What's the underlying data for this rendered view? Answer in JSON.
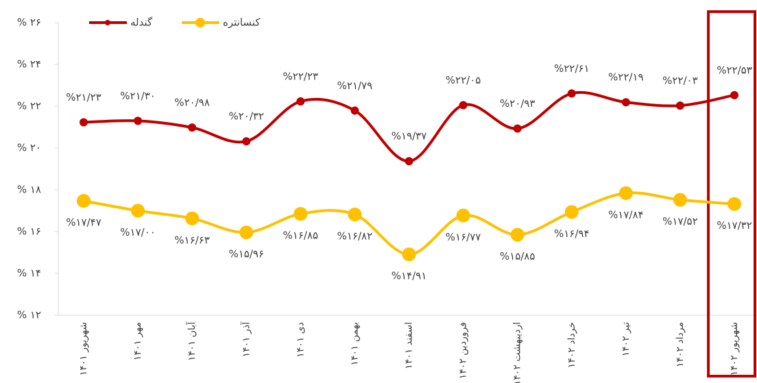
{
  "chart_data": {
    "type": "line",
    "categories": [
      "شهریور ۱۴۰۱",
      "مهر ۱۴۰۱",
      "آبان ۱۴۰۱",
      "آذر ۱۴۰۱",
      "دی ۱۴۰۱",
      "بهمن ۱۴۰۱",
      "اسفند ۱۴۰۱",
      "فروردین ۱۴۰۲",
      "اردیبهشت ۱۴۰۲",
      "خرداد ۱۴۰۲",
      "تیر ۱۴۰۲",
      "مرداد ۱۴۰۲",
      "شهریور ۱۴۰۲"
    ],
    "series": [
      {
        "name": "گندله",
        "color": "#c00000",
        "values": [
          21.23,
          21.3,
          20.98,
          20.32,
          22.23,
          21.79,
          19.37,
          22.05,
          20.93,
          22.61,
          22.19,
          22.03,
          22.53
        ],
        "value_labels": [
          "%۲۱/۲۳",
          "%۲۱/۳۰",
          "%۲۰/۹۸",
          "%۲۰/۳۲",
          "%۲۲/۲۳",
          "%۲۱/۷۹",
          "%۱۹/۳۷",
          "%۲۲/۰۵",
          "%۲۰/۹۳",
          "%۲۲/۶۱",
          "%۲۲/۱۹",
          "%۲۲/۰۳",
          "%۲۲/۵۳"
        ]
      },
      {
        "name": "کنسانتره",
        "color": "#ffc000",
        "values": [
          17.47,
          17.0,
          16.63,
          15.96,
          16.85,
          16.82,
          14.91,
          16.77,
          15.85,
          16.94,
          17.84,
          17.52,
          17.32
        ],
        "value_labels": [
          "%۱۷/۴۷",
          "%۱۷/۰۰",
          "%۱۶/۶۳",
          "%۱۵/۹۶",
          "%۱۶/۸۵",
          "%۱۶/۸۲",
          "%۱۴/۹۱",
          "%۱۶/۷۷",
          "%۱۵/۸۵",
          "%۱۶/۹۴",
          "%۱۷/۸۴",
          "%۱۷/۵۲",
          "%۱۷/۳۲"
        ]
      }
    ],
    "ylim": [
      12,
      26
    ],
    "yticks": [
      {
        "value": 12,
        "label": "% ۱۲"
      },
      {
        "value": 14,
        "label": "% ۱۴"
      },
      {
        "value": 16,
        "label": "% ۱۶"
      },
      {
        "value": 18,
        "label": "% ۱۸"
      },
      {
        "value": 20,
        "label": "% ۲۰"
      },
      {
        "value": 22,
        "label": "% ۲۲"
      },
      {
        "value": 24,
        "label": "% ۲۴"
      },
      {
        "value": 26,
        "label": "% ۲۶"
      }
    ],
    "legend": "top-left"
  }
}
